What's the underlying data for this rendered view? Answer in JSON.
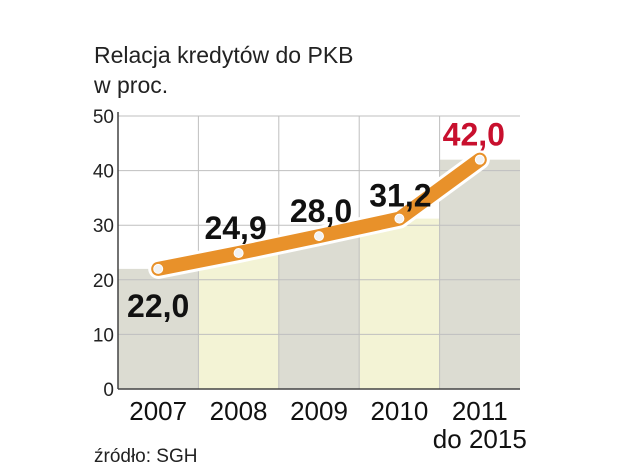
{
  "chart_data": {
    "type": "line",
    "title_line1": "Relacja kredytów do PKB",
    "title_line2": "w proc.",
    "categories": [
      {
        "label": "2007",
        "sub": ""
      },
      {
        "label": "2008",
        "sub": ""
      },
      {
        "label": "2009",
        "sub": ""
      },
      {
        "label": "2010",
        "sub": ""
      },
      {
        "label": "2011",
        "sub": "do 2015"
      }
    ],
    "values": [
      22.0,
      24.9,
      28.0,
      31.2,
      42.0
    ],
    "value_labels": [
      "22,0",
      "24,9",
      "28,0",
      "31,2",
      "42,0"
    ],
    "highlight_index": 4,
    "yticks": [
      "0",
      "10",
      "20",
      "30",
      "40",
      "50"
    ],
    "ylim": [
      0,
      50
    ],
    "grid": true,
    "source": "źródło: SGH",
    "colors": {
      "line": "#e8912a",
      "marker": "#f2f2f2",
      "column_gray": "#dcdcd2",
      "column_yellow": "#f3f3d5",
      "grid": "#bfbfbf",
      "highlight_label": "#c8102e",
      "label": "#111111"
    }
  }
}
